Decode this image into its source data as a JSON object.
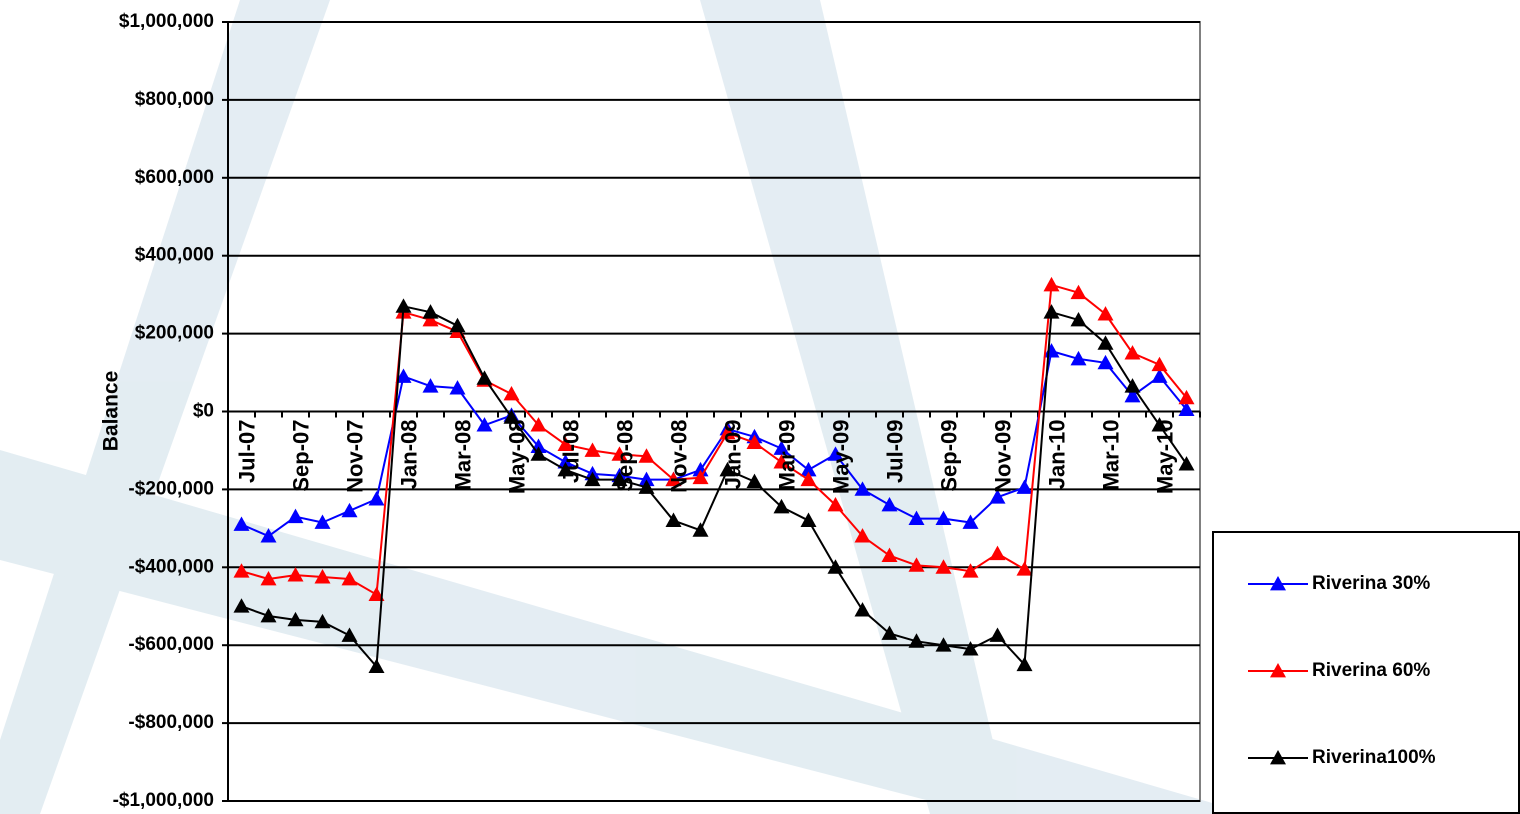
{
  "chart_data": {
    "type": "line",
    "y_label": "Balance",
    "categories": [
      "Jul-07",
      null,
      "Sep-07",
      null,
      "Nov-07",
      null,
      "Jan-08",
      null,
      "Mar-08",
      null,
      "May-08",
      null,
      "Jul-08",
      null,
      "Sep-08",
      null,
      "Nov-08",
      null,
      "Jan-09",
      null,
      "Mar-09",
      null,
      "May-09",
      null,
      "Jul-09",
      null,
      "Sep-09",
      null,
      "Nov-09",
      null,
      "Jan-10",
      null,
      "Mar-10",
      null,
      "May-10",
      null
    ],
    "series": [
      {
        "name": "Riverina 30%",
        "color": "#0000ff",
        "values": [
          -290000,
          -320000,
          -270000,
          -285000,
          -255000,
          -225000,
          90000,
          65000,
          60000,
          -35000,
          -10000,
          -90000,
          -130000,
          -160000,
          -165000,
          -175000,
          -175000,
          -150000,
          -45000,
          -65000,
          -95000,
          -150000,
          -110000,
          -200000,
          -240000,
          -275000,
          -275000,
          -285000,
          -220000,
          -195000,
          155000,
          135000,
          125000,
          40000,
          90000,
          5000
        ]
      },
      {
        "name": "Riverina 60%",
        "color": "#ff0000",
        "values": [
          -410000,
          -430000,
          -420000,
          -425000,
          -430000,
          -470000,
          255000,
          235000,
          205000,
          80000,
          45000,
          -35000,
          -85000,
          -100000,
          -110000,
          -115000,
          -175000,
          -170000,
          -55000,
          -80000,
          -130000,
          -175000,
          -240000,
          -320000,
          -370000,
          -395000,
          -400000,
          -410000,
          -365000,
          -405000,
          325000,
          305000,
          250000,
          150000,
          120000,
          35000
        ]
      },
      {
        "name": "Riverina100%",
        "color": "#000000",
        "values": [
          -500000,
          -525000,
          -535000,
          -540000,
          -575000,
          -655000,
          270000,
          255000,
          220000,
          85000,
          -15000,
          -110000,
          -150000,
          -175000,
          -175000,
          -195000,
          -280000,
          -305000,
          -150000,
          -180000,
          -245000,
          -280000,
          -400000,
          -510000,
          -570000,
          -590000,
          -600000,
          -610000,
          -575000,
          -650000,
          255000,
          235000,
          175000,
          65000,
          -35000,
          -135000
        ]
      }
    ],
    "ylim": [
      -1000000,
      1000000
    ],
    "yticks": [
      {
        "value": -1000000,
        "label": "-$1,000,000"
      },
      {
        "value": -800000,
        "label": "-$800,000"
      },
      {
        "value": -600000,
        "label": "-$600,000"
      },
      {
        "value": -400000,
        "label": "-$400,000"
      },
      {
        "value": -200000,
        "label": "-$200,000"
      },
      {
        "value": 0,
        "label": "$0"
      },
      {
        "value": 200000,
        "label": "$200,000"
      },
      {
        "value": 400000,
        "label": "$400,000"
      },
      {
        "value": 600000,
        "label": "$600,000"
      },
      {
        "value": 800000,
        "label": "$800,000"
      },
      {
        "value": 1000000,
        "label": "$1,000,000"
      }
    ],
    "grid": true,
    "legend": "lower right"
  }
}
